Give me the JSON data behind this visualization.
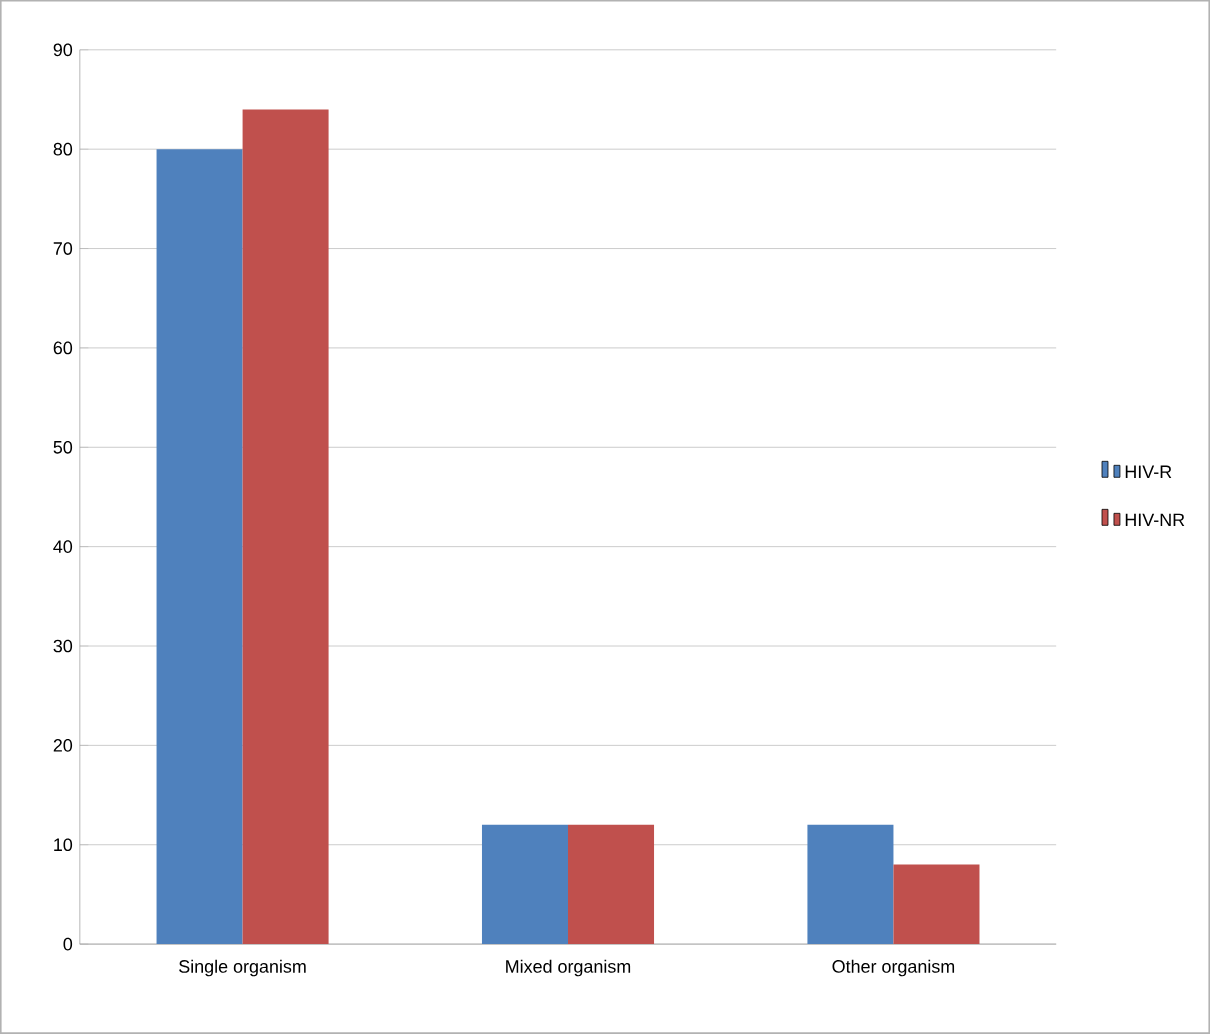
{
  "chart_data": {
    "type": "bar",
    "categories": [
      "Single organism",
      "Mixed organism",
      "Other organism"
    ],
    "series": [
      {
        "name": "HIV-R",
        "color": "#4f81bd",
        "values": [
          80,
          12,
          12
        ]
      },
      {
        "name": "HIV-NR",
        "color": "#c0504d",
        "values": [
          84,
          12,
          8
        ]
      }
    ],
    "ylim": [
      0,
      90
    ],
    "yticks": [
      0,
      10,
      20,
      30,
      40,
      50,
      60,
      70,
      80,
      90
    ],
    "grid": "y",
    "legend": "right"
  }
}
